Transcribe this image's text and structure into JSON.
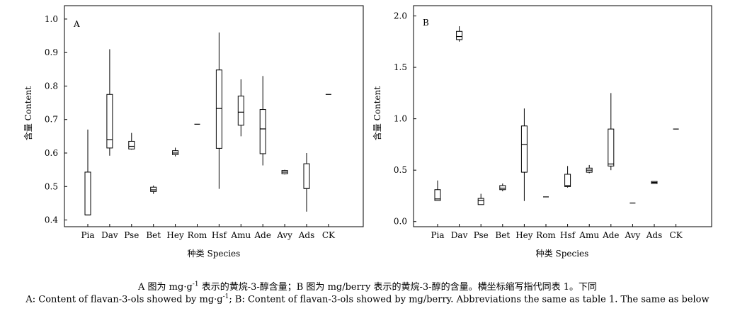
{
  "caption": {
    "line1_a": "A 图为 mg·g",
    "line1_sup": "-1",
    "line1_b": " 表示的黄烷-3-醇含量；B 图为 mg/berry 表示的黄烷-3-醇的含量。横坐标缩写指代同表 1。下同",
    "line2_a": "A: Content of flavan-3-ols showed by mg·g",
    "line2_sup": "-1",
    "line2_b": "; B: Content of flavan-3-ols showed by mg/berry. Abbreviations the same as table 1. The same as below"
  },
  "chart_data": [
    {
      "type": "box",
      "panel_label": "A",
      "xlabel": "种类 Species",
      "ylabel": "含量 Content",
      "categories": [
        "Pia",
        "Dav",
        "Pse",
        "Bet",
        "Hey",
        "Rom",
        "Hsf",
        "Amu",
        "Ade",
        "Avy",
        "Ads",
        "CK"
      ],
      "ylim": [
        0.38,
        1.04
      ],
      "yticks": [
        0.4,
        0.5,
        0.6,
        0.7,
        0.8,
        0.9,
        1.0
      ],
      "ytick_labels": [
        "0.4",
        "0.5",
        "0.6",
        "0.7",
        "0.8",
        "0.9",
        "1.0"
      ],
      "boxes": [
        {
          "min": 0.415,
          "q1": 0.415,
          "median": 0.415,
          "q3": 0.543,
          "max": 0.67
        },
        {
          "min": 0.592,
          "q1": 0.615,
          "median": 0.64,
          "q3": 0.775,
          "max": 0.91
        },
        {
          "min": 0.61,
          "q1": 0.612,
          "median": 0.62,
          "q3": 0.635,
          "max": 0.66
        },
        {
          "min": 0.478,
          "q1": 0.485,
          "median": 0.49,
          "q3": 0.498,
          "max": 0.503
        },
        {
          "min": 0.59,
          "q1": 0.595,
          "median": 0.6,
          "q3": 0.607,
          "max": 0.616
        },
        {
          "min": 0.686,
          "q1": 0.686,
          "median": 0.686,
          "q3": 0.686,
          "max": 0.686
        },
        {
          "min": 0.493,
          "q1": 0.614,
          "median": 0.733,
          "q3": 0.848,
          "max": 0.96
        },
        {
          "min": 0.65,
          "q1": 0.683,
          "median": 0.722,
          "q3": 0.77,
          "max": 0.82
        },
        {
          "min": 0.563,
          "q1": 0.598,
          "median": 0.672,
          "q3": 0.73,
          "max": 0.83
        },
        {
          "min": 0.536,
          "q1": 0.538,
          "median": 0.543,
          "q3": 0.548,
          "max": 0.55
        },
        {
          "min": 0.425,
          "q1": 0.494,
          "median": 0.494,
          "q3": 0.568,
          "max": 0.6
        },
        {
          "min": 0.775,
          "q1": 0.775,
          "median": 0.775,
          "q3": 0.775,
          "max": 0.775
        }
      ]
    },
    {
      "type": "box",
      "panel_label": "B",
      "xlabel": "种类 Species",
      "ylabel": "含量 Content",
      "categories": [
        "Pia",
        "Dav",
        "Pse",
        "Bet",
        "Hey",
        "Rom",
        "Hsf",
        "Amu",
        "Ade",
        "Avy",
        "Ads",
        "CK"
      ],
      "ylim": [
        -0.05,
        2.1
      ],
      "yticks": [
        0.0,
        0.5,
        1.0,
        1.5,
        2.0
      ],
      "ytick_labels": [
        "0.0",
        "0.5",
        "1.0",
        "1.5",
        "2.0"
      ],
      "boxes": [
        {
          "min": 0.205,
          "q1": 0.205,
          "median": 0.22,
          "q3": 0.31,
          "max": 0.4
        },
        {
          "min": 1.75,
          "q1": 1.77,
          "median": 1.8,
          "q3": 1.85,
          "max": 1.9
        },
        {
          "min": 0.165,
          "q1": 0.165,
          "median": 0.205,
          "q3": 0.225,
          "max": 0.27
        },
        {
          "min": 0.295,
          "q1": 0.31,
          "median": 0.325,
          "q3": 0.35,
          "max": 0.37
        },
        {
          "min": 0.2,
          "q1": 0.48,
          "median": 0.75,
          "q3": 0.93,
          "max": 1.1
        },
        {
          "min": 0.24,
          "q1": 0.24,
          "median": 0.24,
          "q3": 0.24,
          "max": 0.24
        },
        {
          "min": 0.33,
          "q1": 0.34,
          "median": 0.35,
          "q3": 0.46,
          "max": 0.54
        },
        {
          "min": 0.47,
          "q1": 0.48,
          "median": 0.5,
          "q3": 0.52,
          "max": 0.55
        },
        {
          "min": 0.5,
          "q1": 0.54,
          "median": 0.56,
          "q3": 0.9,
          "max": 1.25
        },
        {
          "min": 0.18,
          "q1": 0.18,
          "median": 0.18,
          "q3": 0.18,
          "max": 0.18
        },
        {
          "min": 0.37,
          "q1": 0.37,
          "median": 0.38,
          "q3": 0.39,
          "max": 0.39
        },
        {
          "min": 0.9,
          "q1": 0.9,
          "median": 0.9,
          "q3": 0.9,
          "max": 0.9
        }
      ]
    }
  ]
}
